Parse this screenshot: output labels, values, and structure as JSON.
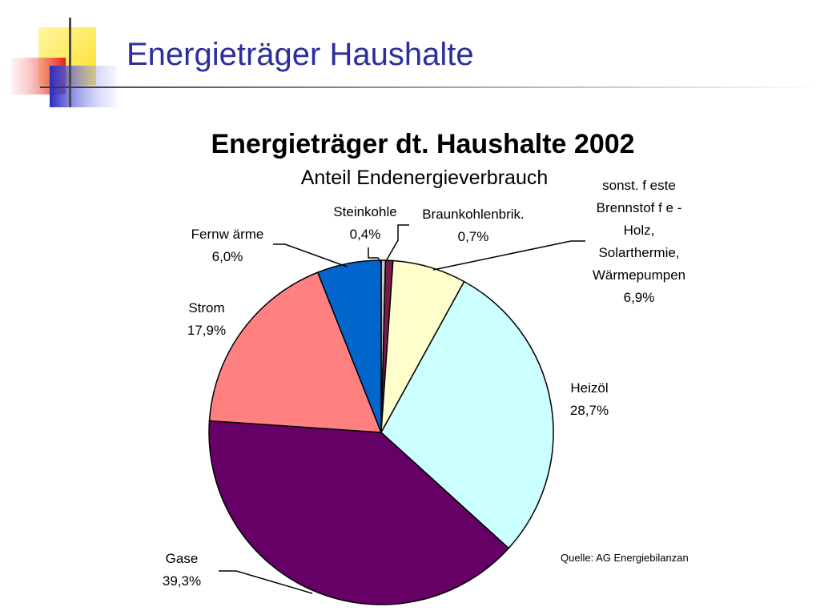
{
  "slide": {
    "title": "Energieträger Haushalte",
    "source": "Quelle: AG Energiebilanzan"
  },
  "colors": {
    "title": "#2b2e9c",
    "deco_yellow": "#fde02a",
    "deco_red": "#f04848",
    "deco_blue": "#3538c8",
    "deco_line": "#4a4a4a"
  },
  "chart_data": {
    "type": "pie",
    "title": "Energieträger dt. Haushalte 2002",
    "subtitle": "Anteil Endenergieverbrauch",
    "unit": "%",
    "slices": [
      {
        "label": "Steinkohle",
        "label_lines": [
          "Steinkohle",
          "0,4%"
        ],
        "value": 0.4,
        "value_text": "0,4%",
        "color": "#c7c7c7"
      },
      {
        "label": "Braunkohlenbrik.",
        "label_lines": [
          "Braunkohlenbrik.",
          "0,7%"
        ],
        "value": 0.7,
        "value_text": "0,7%",
        "color": "#7a1c4a"
      },
      {
        "label": "sonst. feste Brennstoffe - Holz, Solarthermie, Wärmepumpen",
        "label_lines": [
          "sonst. f este",
          "Brennstof f e -",
          "Holz,",
          "Solarthermie,",
          "Wärmepumpen",
          "6,9%"
        ],
        "value": 6.9,
        "value_text": "6,9%",
        "color": "#ffffcc"
      },
      {
        "label": "Heizöl",
        "label_lines": [
          "Heizöl",
          "28,7%"
        ],
        "value": 28.7,
        "value_text": "28,7%",
        "color": "#ccffff"
      },
      {
        "label": "Gase",
        "label_lines": [
          "Gase",
          "39,3%"
        ],
        "value": 39.3,
        "value_text": "39,3%",
        "color": "#660066"
      },
      {
        "label": "Strom",
        "label_lines": [
          "Strom",
          "17,9%"
        ],
        "value": 17.9,
        "value_text": "17,9%",
        "color": "#ff8080"
      },
      {
        "label": "Fernwärme",
        "label_lines": [
          "Fernw ärme",
          "6,0%"
        ],
        "value": 6.0,
        "value_text": "6,0%",
        "color": "#0066cc"
      }
    ]
  }
}
